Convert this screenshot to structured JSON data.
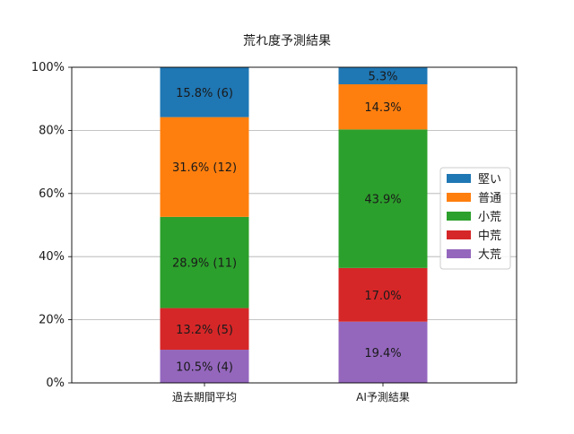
{
  "chart_data": {
    "type": "bar",
    "stacked": true,
    "title": "荒れ度予測結果",
    "xlabel": "",
    "ylabel": "",
    "ylim": [
      0,
      100
    ],
    "y_tick_labels": [
      "0%",
      "20%",
      "40%",
      "60%",
      "80%",
      "100%"
    ],
    "y_ticks": [
      0,
      20,
      40,
      60,
      80,
      100
    ],
    "grid": "horizontal",
    "legend_position": "center-right",
    "categories": [
      "過去期間平均",
      "AI予測結果"
    ],
    "series": [
      {
        "name": "大荒",
        "color": "#9467bd",
        "values": [
          10.5,
          19.4
        ],
        "labels": [
          "10.5% (4)",
          "19.4%"
        ]
      },
      {
        "name": "中荒",
        "color": "#d62728",
        "values": [
          13.2,
          17.0
        ],
        "labels": [
          "13.2% (5)",
          "17.0%"
        ]
      },
      {
        "name": "小荒",
        "color": "#2ca02c",
        "values": [
          28.9,
          43.9
        ],
        "labels": [
          "28.9% (11)",
          "43.9%"
        ]
      },
      {
        "name": "普通",
        "color": "#ff7f0e",
        "values": [
          31.6,
          14.3
        ],
        "labels": [
          "31.6% (12)",
          "14.3%"
        ]
      },
      {
        "name": "堅い",
        "color": "#1f77b4",
        "values": [
          15.8,
          5.3
        ],
        "labels": [
          "15.8% (6)",
          "5.3%"
        ]
      }
    ],
    "legend_order": [
      "堅い",
      "普通",
      "小荒",
      "中荒",
      "大荒"
    ]
  }
}
